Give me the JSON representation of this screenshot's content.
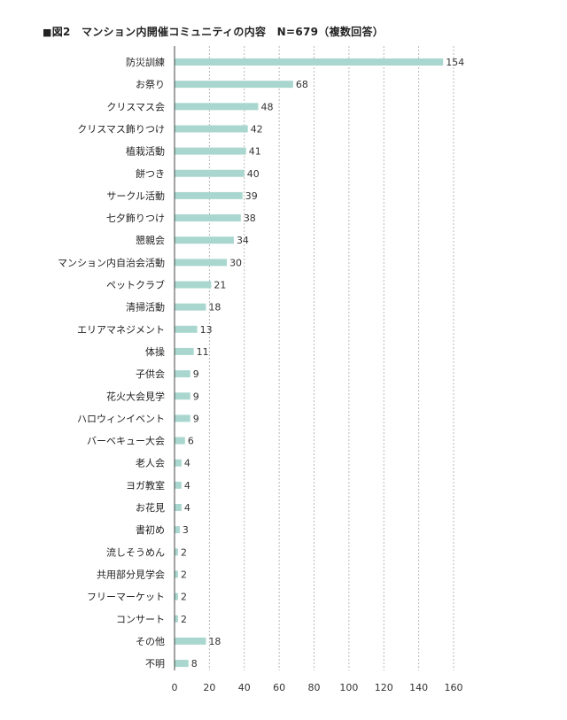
{
  "title": {
    "mark": "■",
    "text": "図2　マンション内開催コミュニティの内容　N=679（複数回答）"
  },
  "colors": {
    "bar": "#a9d7cf",
    "grid": "#b8b8b8",
    "axis": "#444444",
    "text": "#222222"
  },
  "chart_data": {
    "type": "bar",
    "orientation": "horizontal",
    "title": "図2　マンション内開催コミュニティの内容　N=679（複数回答）",
    "xlabel": "",
    "ylabel": "",
    "xlim": [
      0,
      160
    ],
    "xticks": [
      0,
      20,
      40,
      60,
      80,
      100,
      120,
      140,
      160
    ],
    "grid": "vertical dashed",
    "categories": [
      "防災訓練",
      "お祭り",
      "クリスマス会",
      "クリスマス飾りつけ",
      "植栽活動",
      "餅つき",
      "サークル活動",
      "七夕飾りつけ",
      "懇親会",
      "マンション内自治会活動",
      "ペットクラブ",
      "清掃活動",
      "エリアマネジメント",
      "体操",
      "子供会",
      "花火大会見学",
      "ハロウィンイベント",
      "バーベキュー大会",
      "老人会",
      "ヨガ教室",
      "お花見",
      "書初め",
      "流しそうめん",
      "共用部分見学会",
      "フリーマーケット",
      "コンサート",
      "その他",
      "不明"
    ],
    "values": [
      154,
      68,
      48,
      42,
      41,
      40,
      39,
      38,
      34,
      30,
      21,
      18,
      13,
      11,
      9,
      9,
      9,
      6,
      4,
      4,
      4,
      3,
      2,
      2,
      2,
      2,
      18,
      8
    ]
  }
}
